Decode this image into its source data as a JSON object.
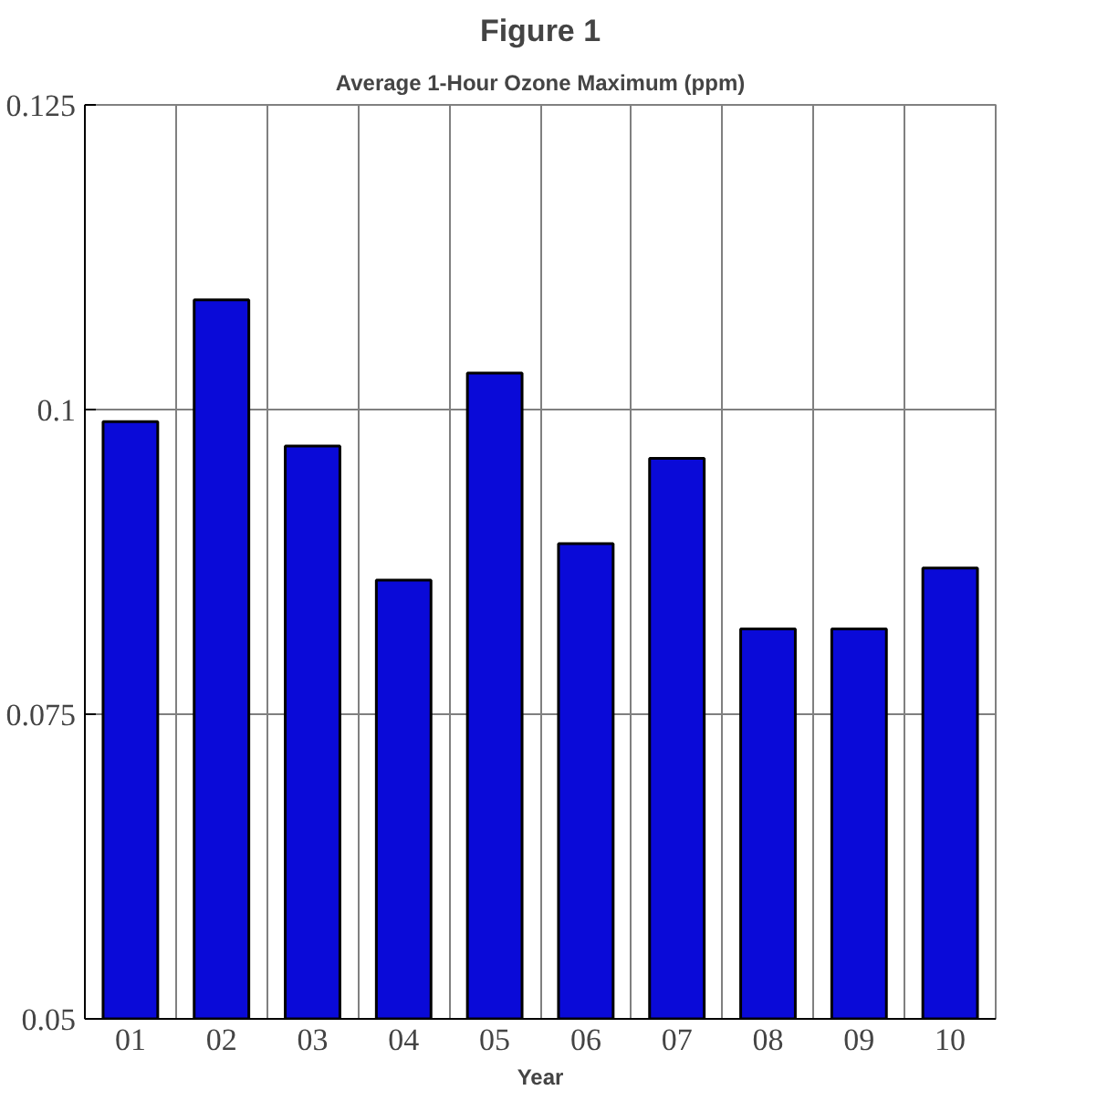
{
  "chart_data": {
    "type": "bar",
    "title": "Figure 1",
    "subtitle": "Average 1-Hour Ozone Maximum (ppm)",
    "xlabel": "Year",
    "categories": [
      "01",
      "02",
      "03",
      "04",
      "05",
      "06",
      "07",
      "08",
      "09",
      "10"
    ],
    "values": [
      0.099,
      0.109,
      0.097,
      0.086,
      0.103,
      0.089,
      0.096,
      0.082,
      0.082,
      0.087
    ],
    "color": "#0a0ad8",
    "ylim": [
      0.05,
      0.125
    ],
    "yticks": [
      0.05,
      0.075,
      0.1,
      0.125
    ],
    "grid": true
  }
}
